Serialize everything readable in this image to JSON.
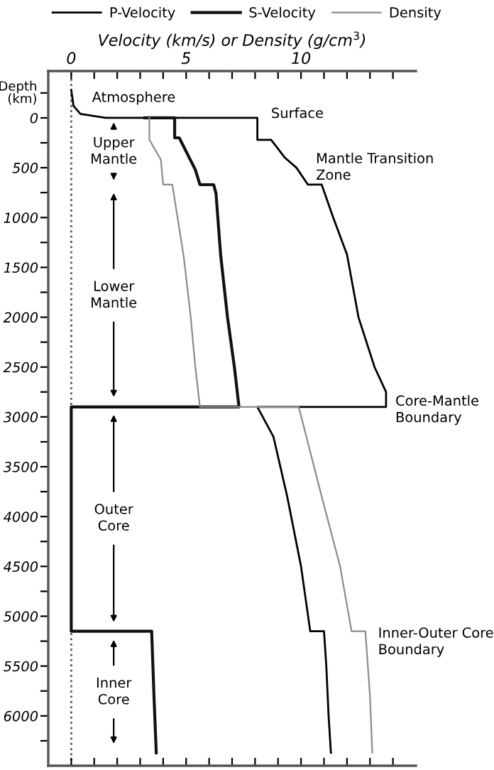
{
  "chart_data": {
    "type": "line",
    "xlabel": "Velocity (km/s) or Density (g/cm$^{3}$)",
    "ylabel": "Depth\n(km)",
    "xlim": [
      -1,
      15
    ],
    "xticks": [
      0,
      {
        "value": 1,
        "label": null
      },
      {
        "value": 2,
        "label": null
      },
      {
        "value": 3,
        "label": null
      },
      {
        "value": 4,
        "label": null
      },
      5,
      {
        "value": 6,
        "label": null
      },
      {
        "value": 7,
        "label": null
      },
      {
        "value": 8,
        "label": null
      },
      {
        "value": 9,
        "label": null
      },
      10,
      {
        "value": 11,
        "label": null
      },
      {
        "value": 12,
        "label": null
      },
      {
        "value": 13,
        "label": null
      },
      {
        "value": 14,
        "label": null
      }
    ],
    "ylim": [
      6500,
      -470
    ],
    "yticks": [
      {
        "value": -250,
        "label": null
      },
      0,
      {
        "value": 250,
        "label": null
      },
      500,
      {
        "value": 750,
        "label": null
      },
      1000,
      {
        "value": 1250,
        "label": null
      },
      1500,
      {
        "value": 1750,
        "label": null
      },
      2000,
      {
        "value": 2250,
        "label": null
      },
      2500,
      {
        "value": 2750,
        "label": null
      },
      3000,
      {
        "value": 3250,
        "label": null
      },
      3500,
      {
        "value": 3750,
        "label": null
      },
      4000,
      {
        "value": 4250,
        "label": null
      },
      4500,
      {
        "value": 4750,
        "label": null
      },
      5000,
      {
        "value": 5250,
        "label": null
      },
      5500,
      {
        "value": 5750,
        "label": null
      },
      6000,
      {
        "value": 6250,
        "label": null
      }
    ],
    "series": [
      {
        "name": "P-Velocity",
        "color": "#000000",
        "x": [
          0,
          0.1,
          0.4,
          1.5,
          8.1,
          8.1,
          8.7,
          9.3,
          9.8,
          10.3,
          10.9,
          11.4,
          12.0,
          12.5,
          13.2,
          13.7,
          13.7,
          8.1,
          8.8,
          9.4,
          10.0,
          10.4,
          11.0,
          11.1,
          11.2,
          11.3
        ],
        "values": [
          -280,
          -120,
          -40,
          0,
          0,
          220,
          220,
          400,
          500,
          670,
          670,
          1000,
          1370,
          2000,
          2500,
          2750,
          2900,
          2900,
          3200,
          3800,
          4500,
          5150,
          5150,
          5500,
          6000,
          6370
        ]
      },
      {
        "name": "S-Velocity",
        "color": "#111111",
        "x": [
          3.2,
          4.5,
          4.5,
          4.7,
          5.4,
          5.6,
          6.2,
          6.3,
          6.5,
          6.8,
          7.1,
          7.3,
          0,
          0,
          3.5,
          3.6,
          3.7
        ],
        "values": [
          0,
          0,
          200,
          200,
          520,
          670,
          670,
          760,
          1370,
          2000,
          2500,
          2900,
          2900,
          5150,
          5150,
          5800,
          6370
        ]
      },
      {
        "name": "Density",
        "color": "#8c8c8c",
        "x": [
          3.4,
          3.4,
          3.9,
          4.0,
          4.4,
          4.9,
          5.2,
          5.4,
          5.6,
          9.9,
          10.9,
          11.7,
          12.2,
          12.8,
          13.0,
          13.1
        ],
        "values": [
          0,
          220,
          420,
          670,
          670,
          1400,
          2000,
          2500,
          2900,
          2900,
          3800,
          4500,
          5150,
          5150,
          5800,
          6370
        ]
      }
    ],
    "ref_lines": [
      {
        "axis": "x",
        "value": 0,
        "color": "#555555",
        "line_style": "dotted"
      }
    ],
    "annotations": [
      "Atmosphere",
      "Surface",
      "Mantle Transition\nZone",
      "Core-Mantle\nBoundary",
      "Inner-Outer Core\nBoundary",
      "Upper\nMantle",
      "Lower\nMantle",
      "Outer\nCore",
      "Inner\nCore"
    ],
    "legend": "top",
    "grid": false,
    "line_style": "solid",
    "marker": "none"
  }
}
